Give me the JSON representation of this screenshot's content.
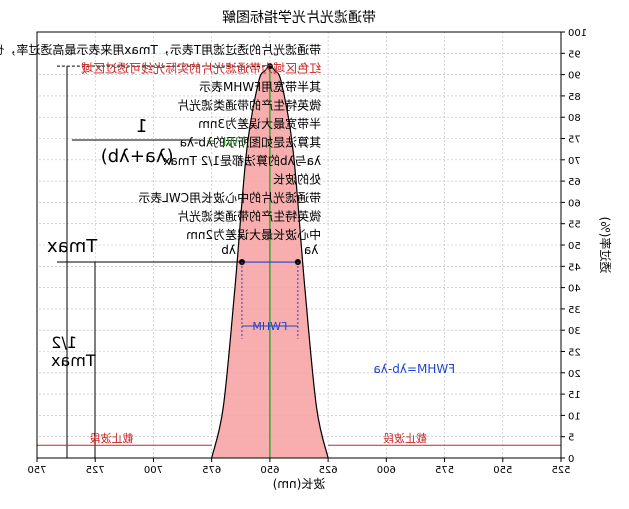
{
  "chart_data": {
    "type": "area",
    "title": "带通滤光片光学指标图解",
    "xlabel": "波长(nm)",
    "ylabel": "透过率(%)",
    "x_ticks": [
      750,
      725,
      700,
      675,
      650,
      625,
      600,
      575,
      550,
      525
    ],
    "y_ticks": [
      0,
      5,
      10,
      15,
      20,
      25,
      30,
      35,
      40,
      45,
      50,
      55,
      60,
      65,
      70,
      75,
      80,
      85,
      90,
      95,
      100
    ],
    "xlim": [
      750,
      525
    ],
    "ylim": [
      0,
      100
    ],
    "grid": true,
    "mirrored": true,
    "series": [
      {
        "x": [
          675,
          670,
          665,
          660,
          655,
          652,
          650,
          648,
          645,
          640,
          635,
          630,
          625
        ],
        "y": [
          0,
          12,
          40,
          72,
          88,
          91,
          92,
          91,
          88,
          72,
          40,
          12,
          0
        ]
      }
    ],
    "center_wavelength": 650,
    "peak_transmission": 92,
    "half_max_transmission": 46,
    "lambda_a": 638,
    "lambda_b": 662,
    "cutoff_level": 3,
    "colors": {
      "fill": "#f7a0a0",
      "curve": "#000000",
      "center_line": "#22aa22",
      "fwhm": "#2244cc",
      "cutoff": "#cc2222",
      "grid": "#bbbbbb"
    }
  },
  "annotations": {
    "text_lines": [
      {
        "text": "带通滤光片的透过滤用T表示，Tmax用来表示最高透过率，也就峰值透过率",
        "color": "#000000"
      },
      {
        "text": "红色区域为带通滤光片的实际光线可透过区域",
        "color": "#cc2222"
      },
      {
        "text": "其半带宽用FWHM表示",
        "color": "#000000"
      },
      {
        "text": "微英特生产的带通类滤光片",
        "color": "#000000"
      },
      {
        "text": "半带宽最大误差为3nm",
        "color": "#000000"
      },
      {
        "text": "其算法是如图所示的λb-λa",
        "color": "#000000"
      },
      {
        "text": "λa与λb的算法都是1/2 Tmax",
        "color": "#000000"
      },
      {
        "text": "处的波长",
        "color": "#000000"
      },
      {
        "text": "带通滤光片的中心波长用CWL表示",
        "color": "#000000"
      },
      {
        "text": "微英特生产的带通类滤光片",
        "color": "#000000"
      },
      {
        "text": "中心波长最大误差为2nm",
        "color": "#000000"
      }
    ],
    "tmax_label": "Tmax",
    "half_label": "1/2",
    "half_tmax_label": "Tmax",
    "cwl_label": "CWL =",
    "cwl_formula_num": "1",
    "cwl_formula_den": "(λa+λb)",
    "lambda_a_label": "λa",
    "lambda_b_label": "λb",
    "fwhm_label": "FWHM",
    "fwhm_formula": "FWHM=λb-λa",
    "cutoff_left": "截止波段",
    "cutoff_right": "截止波段"
  }
}
